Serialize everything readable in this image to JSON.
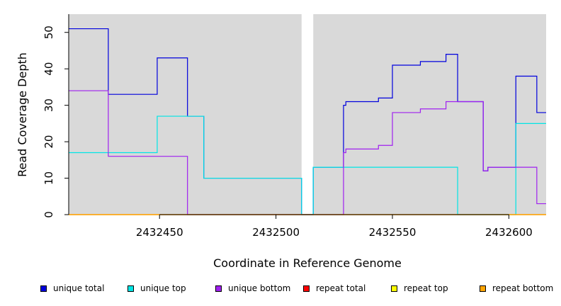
{
  "chart_data": {
    "type": "line",
    "title": "",
    "xlabel": "Coordinate in Reference Genome",
    "ylabel": "Read Coverage Depth",
    "xlim": [
      2432411,
      2432616
    ],
    "ylim": [
      0,
      55
    ],
    "xticks": [
      2432450,
      2432500,
      2432550,
      2432600
    ],
    "yticks": [
      0,
      10,
      20,
      30,
      40,
      50
    ],
    "background_color": "#d9d9d9",
    "gap_region": [
      2432511,
      2432516
    ],
    "grid": false,
    "legend_position": "bottom",
    "series": [
      {
        "name": "unique total",
        "color": "#0000dd",
        "steps": [
          [
            2432411,
            51
          ],
          [
            2432428,
            33
          ],
          [
            2432449,
            43
          ],
          [
            2432462,
            27
          ],
          [
            2432469,
            10
          ],
          [
            2432511,
            0
          ],
          [
            2432516,
            13
          ],
          [
            2432529,
            30
          ],
          [
            2432530,
            31
          ],
          [
            2432544,
            32
          ],
          [
            2432550,
            41
          ],
          [
            2432562,
            42
          ],
          [
            2432573,
            44
          ],
          [
            2432578,
            31
          ],
          [
            2432589,
            12
          ],
          [
            2432591,
            13
          ],
          [
            2432603,
            38
          ],
          [
            2432612,
            28
          ],
          [
            2432616,
            28
          ]
        ]
      },
      {
        "name": "unique top",
        "color": "#00e5e5",
        "steps": [
          [
            2432411,
            17
          ],
          [
            2432449,
            27
          ],
          [
            2432469,
            10
          ],
          [
            2432511,
            0
          ],
          [
            2432516,
            13
          ],
          [
            2432578,
            0
          ],
          [
            2432603,
            25
          ],
          [
            2432616,
            25
          ]
        ]
      },
      {
        "name": "unique bottom",
        "color": "#a020f0",
        "steps": [
          [
            2432411,
            34
          ],
          [
            2432428,
            16
          ],
          [
            2432462,
            0
          ],
          [
            2432529,
            17
          ],
          [
            2432530,
            18
          ],
          [
            2432544,
            19
          ],
          [
            2432550,
            28
          ],
          [
            2432562,
            29
          ],
          [
            2432573,
            31
          ],
          [
            2432589,
            12
          ],
          [
            2432591,
            13
          ],
          [
            2432612,
            3
          ],
          [
            2432616,
            3
          ]
        ]
      },
      {
        "name": "repeat total",
        "color": "#ff0000",
        "steps": [
          [
            2432411,
            0
          ],
          [
            2432616,
            0
          ]
        ]
      },
      {
        "name": "repeat top",
        "color": "#ffff00",
        "steps": [
          [
            2432411,
            0
          ],
          [
            2432616,
            0
          ]
        ]
      },
      {
        "name": "repeat bottom",
        "color": "#ffa500",
        "steps": [
          [
            2432411,
            0
          ],
          [
            2432616,
            0
          ]
        ]
      }
    ]
  }
}
